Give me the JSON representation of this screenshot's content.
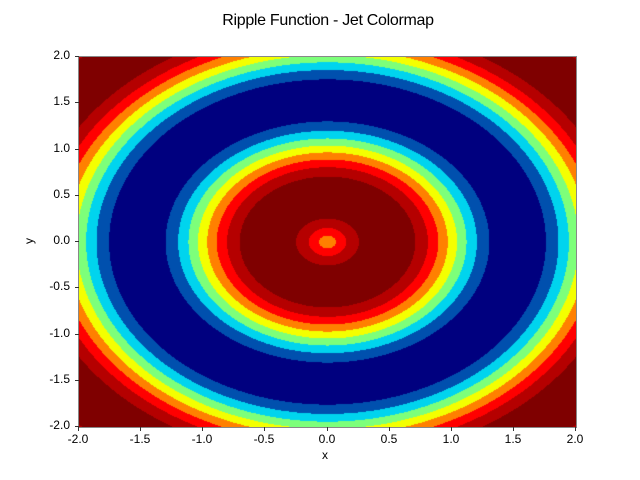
{
  "chart_data": {
    "type": "heatmap",
    "subtype": "filled-contour",
    "title": "Ripple Function - Jet Colormap",
    "xlabel": "x",
    "ylabel": "y",
    "xlim": [
      -2.0,
      2.0
    ],
    "ylim": [
      -2.0,
      2.0
    ],
    "xticks": [
      "-2.0",
      "-1.5",
      "-1.0",
      "-0.5",
      "0.0",
      "0.5",
      "1.0",
      "1.5",
      "2.0"
    ],
    "yticks": [
      "2.0",
      "1.5",
      "1.0",
      "0.5",
      "0.0",
      "-0.5",
      "-1.0",
      "-1.5",
      "-2.0"
    ],
    "grid": false,
    "legend": null,
    "colormap": "jet",
    "function_estimate": "z = cos(2.99 * (sqrt(x^2 + y^2) - 0.48))",
    "levels": 10,
    "level_colors": [
      "#00007f",
      "#0050ae",
      "#00d4ee",
      "#7dff7a",
      "#f4ff00",
      "#ff8000",
      "#ff0000",
      "#b50000",
      "#7f0000",
      "#7f0000"
    ],
    "ring_boundaries_along_x_axis_r": {
      "center_yellow_to_orange": 0.06,
      "orange_to_red": 0.14,
      "red_to_darkred": 0.23,
      "darkred_to_maroon": 0.36,
      "maroon_to_darkred": 0.61,
      "darkred_to_red": 0.77,
      "red_to_orange": 0.86,
      "orange_to_yellow": 0.96,
      "yellow_to_green": 1.05,
      "green_to_cyan": 1.14,
      "cyan_to_blue": 1.25,
      "blue_to_navy": 1.44,
      "navy_to_blue": 1.63,
      "blue_to_cyan": 1.83,
      "cyan_to_green": 2.0
    }
  }
}
